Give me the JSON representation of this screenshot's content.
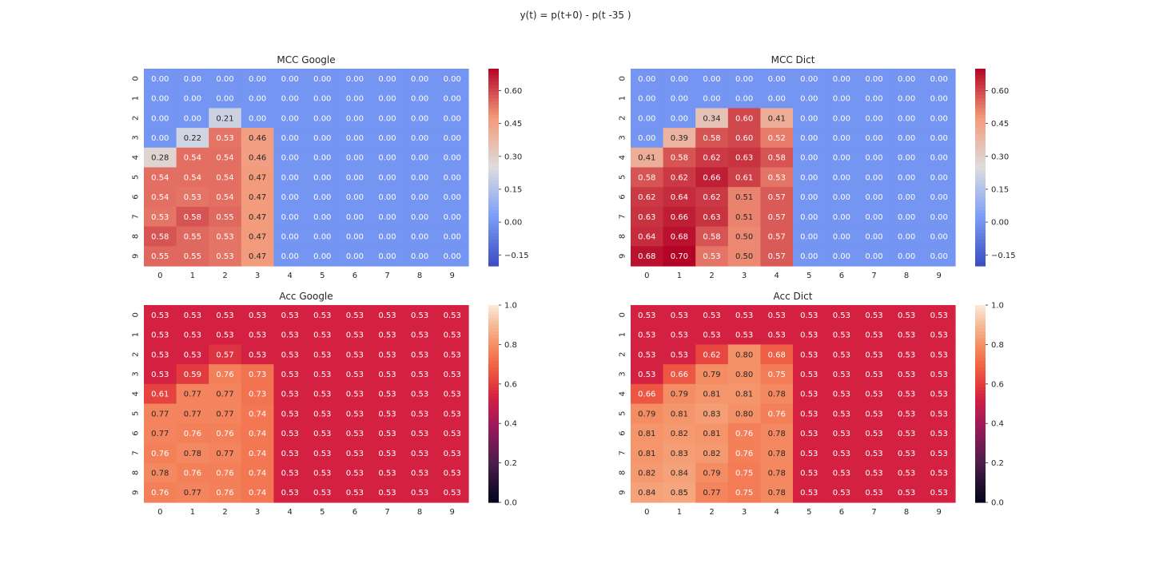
{
  "figure_title": "y(t) = p(t+0) -  p(t -35 )",
  "chart_data": [
    {
      "type": "heatmap",
      "title": "MCC Google",
      "x_tick_labels": [
        "0",
        "1",
        "2",
        "3",
        "4",
        "5",
        "6",
        "7",
        "8",
        "9"
      ],
      "y_tick_labels": [
        "0",
        "1",
        "2",
        "3",
        "4",
        "5",
        "6",
        "7",
        "8",
        "9"
      ],
      "colormap": "coolwarm",
      "vmin": -0.2,
      "vmax": 0.7,
      "colorbar_ticks": [
        -0.15,
        0.0,
        0.15,
        0.3,
        0.45,
        0.6
      ],
      "colorbar_tick_labels": [
        "−0.15",
        "0.00",
        "0.15",
        "0.30",
        "0.45",
        "0.60"
      ],
      "values": [
        [
          0.0,
          0.0,
          0.0,
          0.0,
          0.0,
          0.0,
          0.0,
          0.0,
          0.0,
          0.0
        ],
        [
          0.0,
          0.0,
          0.0,
          0.0,
          0.0,
          0.0,
          0.0,
          0.0,
          0.0,
          0.0
        ],
        [
          0.0,
          0.0,
          0.21,
          0.0,
          0.0,
          0.0,
          0.0,
          0.0,
          0.0,
          0.0
        ],
        [
          0.0,
          0.22,
          0.53,
          0.46,
          0.0,
          0.0,
          0.0,
          0.0,
          0.0,
          0.0
        ],
        [
          0.28,
          0.54,
          0.54,
          0.46,
          0.0,
          0.0,
          0.0,
          0.0,
          0.0,
          0.0
        ],
        [
          0.54,
          0.54,
          0.54,
          0.47,
          0.0,
          0.0,
          0.0,
          0.0,
          0.0,
          0.0
        ],
        [
          0.54,
          0.53,
          0.54,
          0.47,
          0.0,
          0.0,
          0.0,
          0.0,
          0.0,
          0.0
        ],
        [
          0.53,
          0.58,
          0.55,
          0.47,
          0.0,
          0.0,
          0.0,
          0.0,
          0.0,
          0.0
        ],
        [
          0.58,
          0.55,
          0.53,
          0.47,
          0.0,
          0.0,
          0.0,
          0.0,
          0.0,
          0.0
        ],
        [
          0.55,
          0.55,
          0.53,
          0.47,
          0.0,
          0.0,
          0.0,
          0.0,
          0.0,
          0.0
        ]
      ]
    },
    {
      "type": "heatmap",
      "title": "MCC Dict",
      "x_tick_labels": [
        "0",
        "1",
        "2",
        "3",
        "4",
        "5",
        "6",
        "7",
        "8",
        "9"
      ],
      "y_tick_labels": [
        "0",
        "1",
        "2",
        "3",
        "4",
        "5",
        "6",
        "7",
        "8",
        "9"
      ],
      "colormap": "coolwarm",
      "vmin": -0.2,
      "vmax": 0.7,
      "colorbar_ticks": [
        -0.15,
        0.0,
        0.15,
        0.3,
        0.45,
        0.6
      ],
      "colorbar_tick_labels": [
        "−0.15",
        "0.00",
        "0.15",
        "0.30",
        "0.45",
        "0.60"
      ],
      "values": [
        [
          0.0,
          0.0,
          0.0,
          0.0,
          0.0,
          0.0,
          0.0,
          0.0,
          0.0,
          0.0
        ],
        [
          0.0,
          0.0,
          0.0,
          0.0,
          0.0,
          0.0,
          0.0,
          0.0,
          0.0,
          0.0
        ],
        [
          0.0,
          0.0,
          0.34,
          0.6,
          0.41,
          0.0,
          0.0,
          0.0,
          0.0,
          0.0
        ],
        [
          0.0,
          0.39,
          0.58,
          0.6,
          0.52,
          0.0,
          0.0,
          0.0,
          0.0,
          0.0
        ],
        [
          0.41,
          0.58,
          0.62,
          0.63,
          0.58,
          0.0,
          0.0,
          0.0,
          0.0,
          0.0
        ],
        [
          0.58,
          0.62,
          0.66,
          0.61,
          0.53,
          0.0,
          0.0,
          0.0,
          0.0,
          0.0
        ],
        [
          0.62,
          0.64,
          0.62,
          0.51,
          0.57,
          0.0,
          0.0,
          0.0,
          0.0,
          0.0
        ],
        [
          0.63,
          0.66,
          0.63,
          0.51,
          0.57,
          0.0,
          0.0,
          0.0,
          0.0,
          0.0
        ],
        [
          0.64,
          0.68,
          0.58,
          0.5,
          0.57,
          0.0,
          0.0,
          0.0,
          0.0,
          0.0
        ],
        [
          0.68,
          0.7,
          0.53,
          0.5,
          0.57,
          0.0,
          0.0,
          0.0,
          0.0,
          0.0
        ]
      ]
    },
    {
      "type": "heatmap",
      "title": "Acc Google",
      "x_tick_labels": [
        "0",
        "1",
        "2",
        "3",
        "4",
        "5",
        "6",
        "7",
        "8",
        "9"
      ],
      "y_tick_labels": [
        "0",
        "1",
        "2",
        "3",
        "4",
        "5",
        "6",
        "7",
        "8",
        "9"
      ],
      "colormap": "rocket",
      "vmin": 0.0,
      "vmax": 1.0,
      "colorbar_ticks": [
        0.0,
        0.2,
        0.4,
        0.6,
        0.8,
        1.0
      ],
      "colorbar_tick_labels": [
        "0.0",
        "0.2",
        "0.4",
        "0.6",
        "0.8",
        "1.0"
      ],
      "values": [
        [
          0.53,
          0.53,
          0.53,
          0.53,
          0.53,
          0.53,
          0.53,
          0.53,
          0.53,
          0.53
        ],
        [
          0.53,
          0.53,
          0.53,
          0.53,
          0.53,
          0.53,
          0.53,
          0.53,
          0.53,
          0.53
        ],
        [
          0.53,
          0.53,
          0.57,
          0.53,
          0.53,
          0.53,
          0.53,
          0.53,
          0.53,
          0.53
        ],
        [
          0.53,
          0.59,
          0.76,
          0.73,
          0.53,
          0.53,
          0.53,
          0.53,
          0.53,
          0.53
        ],
        [
          0.61,
          0.77,
          0.77,
          0.73,
          0.53,
          0.53,
          0.53,
          0.53,
          0.53,
          0.53
        ],
        [
          0.77,
          0.77,
          0.77,
          0.74,
          0.53,
          0.53,
          0.53,
          0.53,
          0.53,
          0.53
        ],
        [
          0.77,
          0.76,
          0.76,
          0.74,
          0.53,
          0.53,
          0.53,
          0.53,
          0.53,
          0.53
        ],
        [
          0.76,
          0.78,
          0.77,
          0.74,
          0.53,
          0.53,
          0.53,
          0.53,
          0.53,
          0.53
        ],
        [
          0.78,
          0.76,
          0.76,
          0.74,
          0.53,
          0.53,
          0.53,
          0.53,
          0.53,
          0.53
        ],
        [
          0.76,
          0.77,
          0.76,
          0.74,
          0.53,
          0.53,
          0.53,
          0.53,
          0.53,
          0.53
        ]
      ]
    },
    {
      "type": "heatmap",
      "title": "Acc Dict",
      "x_tick_labels": [
        "0",
        "1",
        "2",
        "3",
        "4",
        "5",
        "6",
        "7",
        "8",
        "9"
      ],
      "y_tick_labels": [
        "0",
        "1",
        "2",
        "3",
        "4",
        "5",
        "6",
        "7",
        "8",
        "9"
      ],
      "colormap": "rocket",
      "vmin": 0.0,
      "vmax": 1.0,
      "colorbar_ticks": [
        0.0,
        0.2,
        0.4,
        0.6,
        0.8,
        1.0
      ],
      "colorbar_tick_labels": [
        "0.0",
        "0.2",
        "0.4",
        "0.6",
        "0.8",
        "1.0"
      ],
      "values": [
        [
          0.53,
          0.53,
          0.53,
          0.53,
          0.53,
          0.53,
          0.53,
          0.53,
          0.53,
          0.53
        ],
        [
          0.53,
          0.53,
          0.53,
          0.53,
          0.53,
          0.53,
          0.53,
          0.53,
          0.53,
          0.53
        ],
        [
          0.53,
          0.53,
          0.62,
          0.8,
          0.68,
          0.53,
          0.53,
          0.53,
          0.53,
          0.53
        ],
        [
          0.53,
          0.66,
          0.79,
          0.8,
          0.75,
          0.53,
          0.53,
          0.53,
          0.53,
          0.53
        ],
        [
          0.66,
          0.79,
          0.81,
          0.81,
          0.78,
          0.53,
          0.53,
          0.53,
          0.53,
          0.53
        ],
        [
          0.79,
          0.81,
          0.83,
          0.8,
          0.76,
          0.53,
          0.53,
          0.53,
          0.53,
          0.53
        ],
        [
          0.81,
          0.82,
          0.81,
          0.76,
          0.78,
          0.53,
          0.53,
          0.53,
          0.53,
          0.53
        ],
        [
          0.81,
          0.83,
          0.82,
          0.76,
          0.78,
          0.53,
          0.53,
          0.53,
          0.53,
          0.53
        ],
        [
          0.82,
          0.84,
          0.79,
          0.75,
          0.78,
          0.53,
          0.53,
          0.53,
          0.53,
          0.53
        ],
        [
          0.84,
          0.85,
          0.77,
          0.75,
          0.78,
          0.53,
          0.53,
          0.53,
          0.53,
          0.53
        ]
      ]
    }
  ]
}
